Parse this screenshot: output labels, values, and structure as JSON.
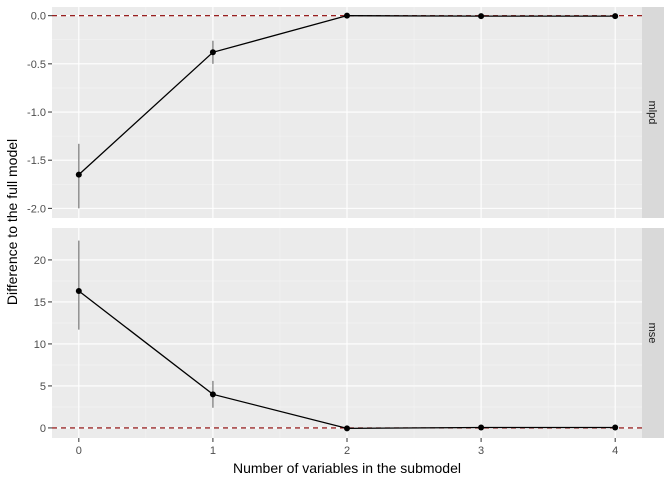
{
  "chart_data": {
    "type": "line",
    "xlabel": "Number of variables in the submodel",
    "ylabel": "Difference to the full model",
    "x": [
      0,
      1,
      2,
      3,
      4
    ],
    "x_ticks": [
      "0",
      "1",
      "2",
      "3",
      "4"
    ],
    "xlim": [
      -0.2,
      4.2
    ],
    "reference_line": {
      "y": 0,
      "color": "#8B0000",
      "style": "dashed"
    },
    "panels": [
      {
        "strip": "mlpd",
        "ylim": [
          -2.1,
          0.09
        ],
        "y_ticks": [
          0,
          -0.5,
          -1,
          -1.5,
          -2
        ],
        "y_tick_labels": [
          "0.0",
          "-0.5",
          "-1.0",
          "-1.5",
          "-2.0"
        ],
        "values": [
          -1.65,
          -0.38,
          0.0,
          -0.005,
          -0.005
        ],
        "lower": [
          -2.0,
          -0.5,
          -0.01,
          -0.01,
          -0.01
        ],
        "upper": [
          -1.33,
          -0.26,
          0.01,
          0.005,
          0.005
        ]
      },
      {
        "strip": "mse",
        "ylim": [
          -1.2,
          23.8
        ],
        "y_ticks": [
          0,
          5,
          10,
          15,
          20
        ],
        "y_tick_labels": [
          "0",
          "5",
          "10",
          "15",
          "20"
        ],
        "values": [
          16.3,
          4.0,
          -0.05,
          0.05,
          0.05
        ],
        "lower": [
          11.7,
          2.4,
          -0.15,
          -0.05,
          -0.05
        ],
        "upper": [
          22.3,
          5.6,
          0.05,
          0.1,
          0.1
        ]
      }
    ]
  }
}
